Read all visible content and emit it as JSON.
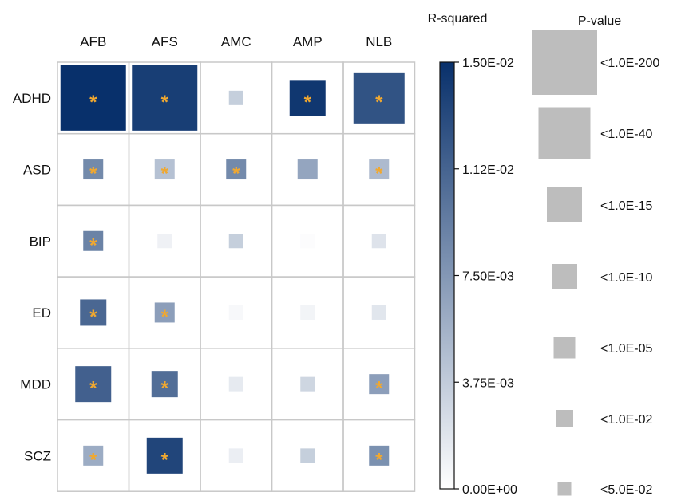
{
  "chart_data": {
    "type": "heatmap",
    "columns": [
      "AFB",
      "AFS",
      "AMC",
      "AMP",
      "NLB"
    ],
    "rows": [
      "ADHD",
      "ASD",
      "BIP",
      "ED",
      "MDD",
      "SCZ"
    ],
    "color_legend": {
      "title": "R-squared",
      "min": 0,
      "max": 0.015,
      "ticks": [
        0.015,
        0.01125,
        0.0075,
        0.00375,
        0
      ],
      "tick_labels": [
        "1.50E-02",
        "1.12E-02",
        "7.50E-03",
        "3.75E-03",
        "0.00E+00"
      ],
      "color_low": "#ffffff",
      "color_high": "#08306b"
    },
    "size_legend": {
      "title": "P-value",
      "entries": [
        {
          "label": "<1.0E-200",
          "level": 7
        },
        {
          "label": "<1.0E-40",
          "level": 6
        },
        {
          "label": "<1.0E-15",
          "level": 5
        },
        {
          "label": "<1.0E-10",
          "level": 4
        },
        {
          "label": "<1.0E-05",
          "level": 3
        },
        {
          "label": "<1.0E-02",
          "level": 2
        },
        {
          "label": "<5.0E-02",
          "level": 1
        }
      ]
    },
    "significance_marker": "*",
    "cells": [
      {
        "row": "ADHD",
        "col": "AFB",
        "r2": 0.015,
        "p_level": 7,
        "sig": true
      },
      {
        "row": "ADHD",
        "col": "AFS",
        "r2": 0.014,
        "p_level": 7,
        "sig": true
      },
      {
        "row": "ADHD",
        "col": "AMC",
        "r2": 0.0035,
        "p_level": 1,
        "sig": false
      },
      {
        "row": "ADHD",
        "col": "AMP",
        "r2": 0.0145,
        "p_level": 4,
        "sig": true
      },
      {
        "row": "ADHD",
        "col": "NLB",
        "r2": 0.0125,
        "p_level": 6,
        "sig": true
      },
      {
        "row": "ASD",
        "col": "AFB",
        "r2": 0.0085,
        "p_level": 2,
        "sig": true
      },
      {
        "row": "ASD",
        "col": "AFS",
        "r2": 0.0045,
        "p_level": 2,
        "sig": true
      },
      {
        "row": "ASD",
        "col": "AMC",
        "r2": 0.0085,
        "p_level": 2,
        "sig": true
      },
      {
        "row": "ASD",
        "col": "AMP",
        "r2": 0.0065,
        "p_level": 2,
        "sig": false
      },
      {
        "row": "ASD",
        "col": "NLB",
        "r2": 0.005,
        "p_level": 2,
        "sig": true
      },
      {
        "row": "BIP",
        "col": "AFB",
        "r2": 0.009,
        "p_level": 2,
        "sig": true
      },
      {
        "row": "BIP",
        "col": "AFS",
        "r2": 0.001,
        "p_level": 1,
        "sig": false
      },
      {
        "row": "BIP",
        "col": "AMC",
        "r2": 0.0035,
        "p_level": 1,
        "sig": false
      },
      {
        "row": "BIP",
        "col": "AMP",
        "r2": 0.0002,
        "p_level": 1,
        "sig": false
      },
      {
        "row": "BIP",
        "col": "NLB",
        "r2": 0.002,
        "p_level": 1,
        "sig": false
      },
      {
        "row": "ED",
        "col": "AFB",
        "r2": 0.011,
        "p_level": 3,
        "sig": true
      },
      {
        "row": "ED",
        "col": "AFS",
        "r2": 0.007,
        "p_level": 2,
        "sig": true
      },
      {
        "row": "ED",
        "col": "AMC",
        "r2": 0.0005,
        "p_level": 1,
        "sig": false
      },
      {
        "row": "ED",
        "col": "AMP",
        "r2": 0.0008,
        "p_level": 1,
        "sig": false
      },
      {
        "row": "ED",
        "col": "NLB",
        "r2": 0.0018,
        "p_level": 1,
        "sig": false
      },
      {
        "row": "MDD",
        "col": "AFB",
        "r2": 0.0115,
        "p_level": 4,
        "sig": true
      },
      {
        "row": "MDD",
        "col": "AFS",
        "r2": 0.0105,
        "p_level": 3,
        "sig": true
      },
      {
        "row": "MDD",
        "col": "AMC",
        "r2": 0.0015,
        "p_level": 1,
        "sig": false
      },
      {
        "row": "MDD",
        "col": "AMP",
        "r2": 0.003,
        "p_level": 1,
        "sig": false
      },
      {
        "row": "MDD",
        "col": "NLB",
        "r2": 0.007,
        "p_level": 2,
        "sig": true
      },
      {
        "row": "SCZ",
        "col": "AFB",
        "r2": 0.006,
        "p_level": 2,
        "sig": true
      },
      {
        "row": "SCZ",
        "col": "AFS",
        "r2": 0.0135,
        "p_level": 4,
        "sig": true
      },
      {
        "row": "SCZ",
        "col": "AMC",
        "r2": 0.0012,
        "p_level": 1,
        "sig": false
      },
      {
        "row": "SCZ",
        "col": "AMP",
        "r2": 0.0035,
        "p_level": 1,
        "sig": false
      },
      {
        "row": "SCZ",
        "col": "NLB",
        "r2": 0.008,
        "p_level": 2,
        "sig": true
      }
    ]
  }
}
